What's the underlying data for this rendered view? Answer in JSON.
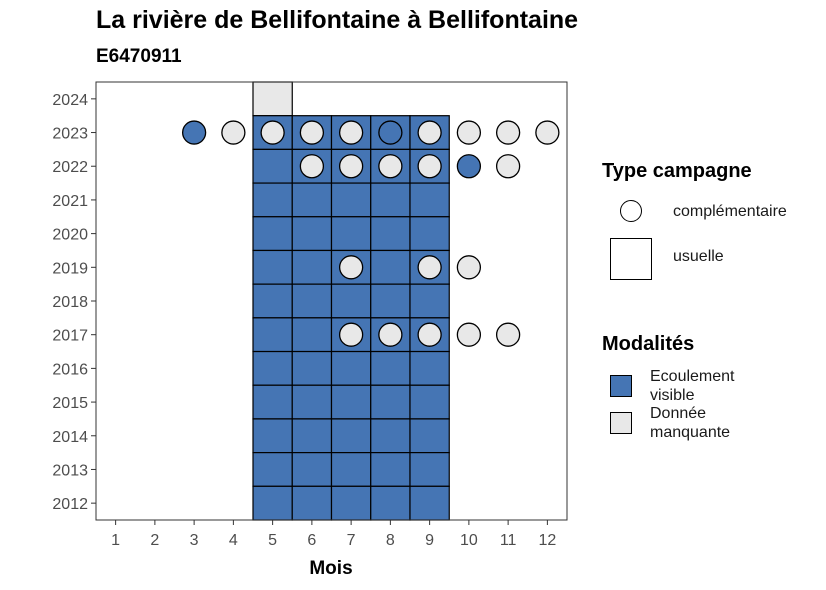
{
  "chart_data": {
    "type": "heatmap",
    "title": "La rivière de Bellifontaine à Bellifontaine",
    "subtitle": "E6470911",
    "xlabel": "Mois",
    "ylabel": "",
    "x_ticks": [
      1,
      2,
      3,
      4,
      5,
      6,
      7,
      8,
      9,
      10,
      11,
      12
    ],
    "y_ticks": [
      2012,
      2013,
      2014,
      2015,
      2016,
      2017,
      2018,
      2019,
      2020,
      2021,
      2022,
      2023,
      2024
    ],
    "xlim": [
      0.5,
      12.5
    ],
    "ylim": [
      2011.5,
      2024.5
    ],
    "grid": false,
    "legend_position": "right",
    "modalities": {
      "ecoulement_visible": {
        "label": "Ecoulement visible",
        "color": "#4575b4"
      },
      "donnee_manquante": {
        "label": "Donnée manquante",
        "color": "#e8e8e8"
      }
    },
    "campaign_types": {
      "usuelle": "usuelle",
      "complementaire": "complémentaire"
    },
    "usuelle": [
      {
        "month": 5,
        "year": 2024,
        "modalite": "donnee_manquante"
      },
      {
        "month": 5,
        "year": 2023,
        "modalite": "ecoulement_visible"
      },
      {
        "month": 6,
        "year": 2023,
        "modalite": "ecoulement_visible"
      },
      {
        "month": 7,
        "year": 2023,
        "modalite": "ecoulement_visible"
      },
      {
        "month": 8,
        "year": 2023,
        "modalite": "ecoulement_visible"
      },
      {
        "month": 9,
        "year": 2023,
        "modalite": "ecoulement_visible"
      },
      {
        "month": 5,
        "year": 2022,
        "modalite": "ecoulement_visible"
      },
      {
        "month": 6,
        "year": 2022,
        "modalite": "ecoulement_visible"
      },
      {
        "month": 7,
        "year": 2022,
        "modalite": "ecoulement_visible"
      },
      {
        "month": 8,
        "year": 2022,
        "modalite": "ecoulement_visible"
      },
      {
        "month": 9,
        "year": 2022,
        "modalite": "ecoulement_visible"
      },
      {
        "month": 5,
        "year": 2021,
        "modalite": "ecoulement_visible"
      },
      {
        "month": 6,
        "year": 2021,
        "modalite": "ecoulement_visible"
      },
      {
        "month": 7,
        "year": 2021,
        "modalite": "ecoulement_visible"
      },
      {
        "month": 8,
        "year": 2021,
        "modalite": "ecoulement_visible"
      },
      {
        "month": 9,
        "year": 2021,
        "modalite": "ecoulement_visible"
      },
      {
        "month": 5,
        "year": 2020,
        "modalite": "ecoulement_visible"
      },
      {
        "month": 6,
        "year": 2020,
        "modalite": "ecoulement_visible"
      },
      {
        "month": 7,
        "year": 2020,
        "modalite": "ecoulement_visible"
      },
      {
        "month": 8,
        "year": 2020,
        "modalite": "ecoulement_visible"
      },
      {
        "month": 9,
        "year": 2020,
        "modalite": "ecoulement_visible"
      },
      {
        "month": 5,
        "year": 2019,
        "modalite": "ecoulement_visible"
      },
      {
        "month": 6,
        "year": 2019,
        "modalite": "ecoulement_visible"
      },
      {
        "month": 7,
        "year": 2019,
        "modalite": "ecoulement_visible"
      },
      {
        "month": 8,
        "year": 2019,
        "modalite": "ecoulement_visible"
      },
      {
        "month": 9,
        "year": 2019,
        "modalite": "ecoulement_visible"
      },
      {
        "month": 5,
        "year": 2018,
        "modalite": "ecoulement_visible"
      },
      {
        "month": 6,
        "year": 2018,
        "modalite": "ecoulement_visible"
      },
      {
        "month": 7,
        "year": 2018,
        "modalite": "ecoulement_visible"
      },
      {
        "month": 8,
        "year": 2018,
        "modalite": "ecoulement_visible"
      },
      {
        "month": 9,
        "year": 2018,
        "modalite": "ecoulement_visible"
      },
      {
        "month": 5,
        "year": 2017,
        "modalite": "ecoulement_visible"
      },
      {
        "month": 6,
        "year": 2017,
        "modalite": "ecoulement_visible"
      },
      {
        "month": 7,
        "year": 2017,
        "modalite": "ecoulement_visible"
      },
      {
        "month": 8,
        "year": 2017,
        "modalite": "ecoulement_visible"
      },
      {
        "month": 9,
        "year": 2017,
        "modalite": "ecoulement_visible"
      },
      {
        "month": 5,
        "year": 2016,
        "modalite": "ecoulement_visible"
      },
      {
        "month": 6,
        "year": 2016,
        "modalite": "ecoulement_visible"
      },
      {
        "month": 7,
        "year": 2016,
        "modalite": "ecoulement_visible"
      },
      {
        "month": 8,
        "year": 2016,
        "modalite": "ecoulement_visible"
      },
      {
        "month": 9,
        "year": 2016,
        "modalite": "ecoulement_visible"
      },
      {
        "month": 5,
        "year": 2015,
        "modalite": "ecoulement_visible"
      },
      {
        "month": 6,
        "year": 2015,
        "modalite": "ecoulement_visible"
      },
      {
        "month": 7,
        "year": 2015,
        "modalite": "ecoulement_visible"
      },
      {
        "month": 8,
        "year": 2015,
        "modalite": "ecoulement_visible"
      },
      {
        "month": 9,
        "year": 2015,
        "modalite": "ecoulement_visible"
      },
      {
        "month": 5,
        "year": 2014,
        "modalite": "ecoulement_visible"
      },
      {
        "month": 6,
        "year": 2014,
        "modalite": "ecoulement_visible"
      },
      {
        "month": 7,
        "year": 2014,
        "modalite": "ecoulement_visible"
      },
      {
        "month": 8,
        "year": 2014,
        "modalite": "ecoulement_visible"
      },
      {
        "month": 9,
        "year": 2014,
        "modalite": "ecoulement_visible"
      },
      {
        "month": 5,
        "year": 2013,
        "modalite": "ecoulement_visible"
      },
      {
        "month": 6,
        "year": 2013,
        "modalite": "ecoulement_visible"
      },
      {
        "month": 7,
        "year": 2013,
        "modalite": "ecoulement_visible"
      },
      {
        "month": 8,
        "year": 2013,
        "modalite": "ecoulement_visible"
      },
      {
        "month": 9,
        "year": 2013,
        "modalite": "ecoulement_visible"
      },
      {
        "month": 5,
        "year": 2012,
        "modalite": "ecoulement_visible"
      },
      {
        "month": 6,
        "year": 2012,
        "modalite": "ecoulement_visible"
      },
      {
        "month": 7,
        "year": 2012,
        "modalite": "ecoulement_visible"
      },
      {
        "month": 8,
        "year": 2012,
        "modalite": "ecoulement_visible"
      },
      {
        "month": 9,
        "year": 2012,
        "modalite": "ecoulement_visible"
      }
    ],
    "complementaire": [
      {
        "month": 3,
        "year": 2023,
        "modalite": "ecoulement_visible"
      },
      {
        "month": 4,
        "year": 2023,
        "modalite": "donnee_manquante"
      },
      {
        "month": 5,
        "year": 2023,
        "modalite": "donnee_manquante"
      },
      {
        "month": 6,
        "year": 2023,
        "modalite": "donnee_manquante"
      },
      {
        "month": 7,
        "year": 2023,
        "modalite": "donnee_manquante"
      },
      {
        "month": 8,
        "year": 2023,
        "modalite": "ecoulement_visible"
      },
      {
        "month": 9,
        "year": 2023,
        "modalite": "donnee_manquante"
      },
      {
        "month": 10,
        "year": 2023,
        "modalite": "donnee_manquante"
      },
      {
        "month": 11,
        "year": 2023,
        "modalite": "donnee_manquante"
      },
      {
        "month": 12,
        "year": 2023,
        "modalite": "donnee_manquante"
      },
      {
        "month": 6,
        "year": 2022,
        "modalite": "donnee_manquante"
      },
      {
        "month": 7,
        "year": 2022,
        "modalite": "donnee_manquante"
      },
      {
        "month": 8,
        "year": 2022,
        "modalite": "donnee_manquante"
      },
      {
        "month": 9,
        "year": 2022,
        "modalite": "donnee_manquante"
      },
      {
        "month": 10,
        "year": 2022,
        "modalite": "ecoulement_visible"
      },
      {
        "month": 11,
        "year": 2022,
        "modalite": "donnee_manquante"
      },
      {
        "month": 7,
        "year": 2019,
        "modalite": "donnee_manquante"
      },
      {
        "month": 9,
        "year": 2019,
        "modalite": "donnee_manquante"
      },
      {
        "month": 10,
        "year": 2019,
        "modalite": "donnee_manquante"
      },
      {
        "month": 7,
        "year": 2017,
        "modalite": "donnee_manquante"
      },
      {
        "month": 8,
        "year": 2017,
        "modalite": "donnee_manquante"
      },
      {
        "month": 9,
        "year": 2017,
        "modalite": "donnee_manquante"
      },
      {
        "month": 10,
        "year": 2017,
        "modalite": "donnee_manquante"
      },
      {
        "month": 11,
        "year": 2017,
        "modalite": "donnee_manquante"
      }
    ]
  },
  "legend": {
    "type_title": "Type campagne",
    "type_complementaire": "complémentaire",
    "type_usuelle": "usuelle",
    "modalites_title": "Modalités",
    "mod_ecoulement_line1": "Ecoulement",
    "mod_ecoulement_line2": "visible",
    "mod_manquante_line1": "Donnée",
    "mod_manquante_line2": "manquante",
    "color_ecoulement": "#4575b4",
    "color_manquante": "#e8e8e8"
  }
}
